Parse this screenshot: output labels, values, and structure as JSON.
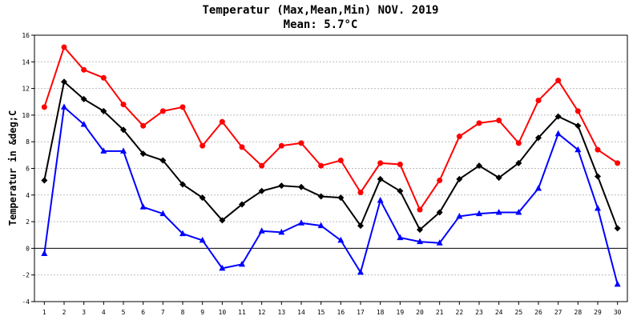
{
  "chart_data": {
    "type": "line",
    "title": "Temperatur (Max,Mean,Min) NOV. 2019",
    "subtitle": "Mean: 5.7°C",
    "xlabel": "",
    "ylabel": "Temperatur in &deg;C",
    "ylim": [
      -4,
      16
    ],
    "yticks": [
      -4,
      -2,
      0,
      2,
      4,
      6,
      8,
      10,
      12,
      14,
      16
    ],
    "x": [
      1,
      2,
      3,
      4,
      5,
      6,
      7,
      8,
      9,
      10,
      11,
      12,
      13,
      14,
      15,
      16,
      17,
      18,
      19,
      20,
      21,
      22,
      23,
      24,
      25,
      26,
      27,
      28,
      29,
      30
    ],
    "grid": true,
    "series": [
      {
        "color": "#ff0000",
        "marker": "circle",
        "values": [
          10.6,
          15.1,
          13.4,
          12.8,
          10.8,
          9.2,
          10.3,
          10.6,
          7.7,
          9.5,
          7.6,
          6.2,
          7.7,
          7.9,
          6.2,
          6.6,
          4.2,
          6.4,
          6.3,
          2.9,
          5.1,
          8.4,
          9.4,
          9.6,
          7.9,
          11.1,
          12.6,
          10.3,
          7.4,
          6.4
        ]
      },
      {
        "color": "#000000",
        "marker": "diamond",
        "values": [
          5.1,
          12.5,
          11.2,
          10.3,
          8.9,
          7.1,
          6.6,
          4.8,
          3.8,
          2.1,
          3.3,
          4.3,
          4.7,
          4.6,
          3.9,
          3.8,
          1.7,
          5.2,
          4.3,
          1.4,
          2.7,
          5.2,
          6.2,
          5.3,
          6.4,
          8.3,
          9.9,
          9.2,
          5.4,
          1.5
        ]
      },
      {
        "color": "#0000ff",
        "marker": "triangle",
        "values": [
          -0.4,
          10.6,
          9.3,
          7.3,
          7.3,
          3.1,
          2.6,
          1.1,
          0.6,
          -1.5,
          -1.2,
          1.3,
          1.2,
          1.9,
          1.7,
          0.6,
          -1.8,
          3.6,
          0.8,
          0.5,
          0.4,
          2.4,
          2.6,
          2.7,
          2.7,
          4.5,
          8.6,
          7.4,
          3.0,
          -2.7
        ]
      }
    ]
  }
}
